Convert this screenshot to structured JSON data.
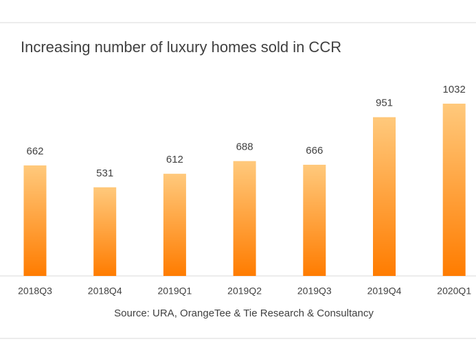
{
  "chart_data": {
    "type": "bar",
    "title": "Increasing number of luxury homes sold in CCR",
    "categories": [
      "2018Q3",
      "2018Q4",
      "2019Q1",
      "2019Q2",
      "2019Q3",
      "2019Q4",
      "2020Q1"
    ],
    "values": [
      662,
      531,
      612,
      688,
      666,
      951,
      1032
    ],
    "source": "Source: URA, OrangeTee & Tie Research & Consultancy"
  }
}
